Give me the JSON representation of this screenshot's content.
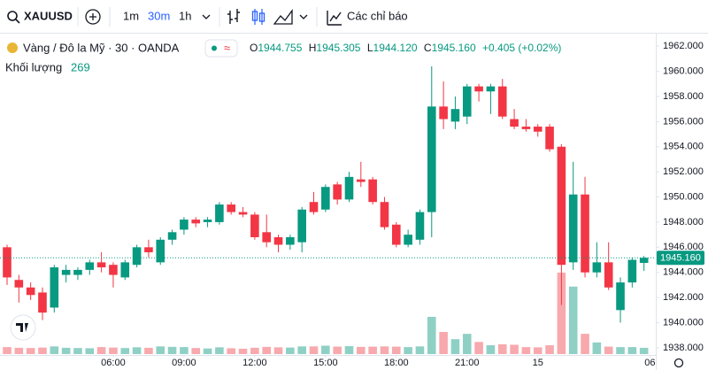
{
  "toolbar": {
    "symbol": "XAUUSD",
    "intervals": [
      "1m",
      "30m",
      "1h"
    ],
    "active_interval": 1,
    "indicators": "Các chỉ báo"
  },
  "legend": {
    "title": "Vàng / Đô la Mỹ · 30 · OANDA",
    "ohlc": [
      {
        "key": "O",
        "value": "1944.755"
      },
      {
        "key": "H",
        "value": "1945.305"
      },
      {
        "key": "L",
        "value": "1944.120"
      },
      {
        "key": "C",
        "value": "1945.160"
      }
    ],
    "change": "+0.405 (+0.02%)",
    "volume_label": "Khối lượng"
  },
  "chart_data": {
    "type": "candlestick",
    "categories": [
      null,
      null,
      null,
      null,
      null,
      null,
      null,
      null,
      null,
      null,
      null,
      null,
      null,
      null,
      null,
      null,
      null,
      null,
      null,
      null,
      null,
      null,
      null,
      null,
      null,
      null,
      null,
      null,
      null,
      null,
      null,
      null,
      null,
      null,
      null,
      null,
      null,
      null,
      null,
      null,
      null,
      null,
      null,
      null,
      null,
      null,
      null,
      null,
      null,
      null,
      null,
      null,
      null,
      null,
      null
    ],
    "open": [
      1946.0,
      1943.4,
      1942.8,
      1942.4,
      1941.2,
      1943.8,
      1943.8,
      1944.2,
      1944.8,
      1944.6,
      1943.6,
      1944.6,
      1946.0,
      1944.8,
      1946.6,
      1947.4,
      1948.2,
      1948.0,
      1948.0,
      1949.4,
      1948.8,
      1948.6,
      1947.2,
      1946.8,
      1946.2,
      1946.4,
      1949.6,
      1949.0,
      1951.0,
      1949.8,
      1951.4,
      1951.4,
      1949.6,
      1947.8,
      1946.2,
      1946.6,
      1948.8,
      1957.2,
      1956.0,
      1956.4,
      1958.8,
      1958.4,
      1958.8,
      1956.2,
      1955.6,
      1955.6,
      1955.6,
      1954.0,
      1944.8,
      1950.2,
      1944.0,
      1944.8,
      1941.0,
      1943.2,
      1944.755
    ],
    "high": [
      1946.2,
      1943.8,
      1943.2,
      1942.8,
      1944.6,
      1944.6,
      1944.4,
      1945.0,
      1945.6,
      1944.8,
      1945.0,
      1946.2,
      1946.6,
      1946.8,
      1947.4,
      1948.4,
      1948.4,
      1948.4,
      1949.6,
      1949.6,
      1949.2,
      1948.8,
      1948.6,
      1947.0,
      1947.0,
      1949.2,
      1950.4,
      1951.0,
      1951.2,
      1952.0,
      1952.8,
      1951.6,
      1950.0,
      1948.0,
      1947.4,
      1949.0,
      1960.4,
      1959.2,
      1958.0,
      1959.0,
      1959.0,
      1959.0,
      1959.4,
      1957.0,
      1956.2,
      1955.8,
      1955.8,
      1954.2,
      1952.8,
      1951.6,
      1946.4,
      1946.4,
      1943.6,
      1945.2,
      1945.305
    ],
    "low": [
      1943.0,
      1941.6,
      1941.8,
      1940.2,
      1940.8,
      1943.2,
      1943.4,
      1943.8,
      1944.0,
      1942.8,
      1943.4,
      1944.4,
      1945.2,
      1944.6,
      1946.2,
      1947.0,
      1947.6,
      1947.6,
      1947.8,
      1948.6,
      1948.4,
      1946.6,
      1946.0,
      1945.6,
      1945.8,
      1945.6,
      1948.6,
      1948.8,
      1949.4,
      1949.6,
      1950.8,
      1949.4,
      1947.4,
      1946.0,
      1946.0,
      1946.2,
      1946.8,
      1955.4,
      1955.4,
      1955.8,
      1957.6,
      1956.6,
      1956.2,
      1955.4,
      1955.2,
      1954.8,
      1953.6,
      1941.4,
      1944.2,
      1943.6,
      1943.6,
      1942.6,
      1940.0,
      1942.8,
      1944.12
    ],
    "close": [
      1943.6,
      1942.8,
      1942.2,
      1940.8,
      1944.4,
      1944.2,
      1944.2,
      1944.8,
      1944.4,
      1943.8,
      1944.8,
      1946.0,
      1945.6,
      1946.6,
      1947.2,
      1948.2,
      1947.9,
      1948.2,
      1949.4,
      1948.8,
      1948.6,
      1946.8,
      1946.4,
      1946.2,
      1946.8,
      1949.0,
      1948.8,
      1950.8,
      1949.8,
      1951.6,
      1951.2,
      1949.6,
      1947.6,
      1946.2,
      1947.0,
      1948.8,
      1957.2,
      1956.2,
      1957.0,
      1958.8,
      1958.4,
      1958.8,
      1956.4,
      1955.6,
      1955.4,
      1955.2,
      1953.8,
      1944.6,
      1950.2,
      1944.0,
      1944.8,
      1942.8,
      1943.2,
      1945.0,
      1945.16
    ],
    "volume": [
      300,
      270,
      260,
      280,
      330,
      270,
      260,
      250,
      300,
      280,
      260,
      290,
      270,
      330,
      310,
      300,
      260,
      240,
      290,
      250,
      230,
      270,
      310,
      290,
      280,
      330,
      330,
      360,
      320,
      340,
      310,
      320,
      330,
      320,
      300,
      330,
      1600,
      950,
      640,
      870,
      520,
      380,
      420,
      400,
      300,
      290,
      380,
      3500,
      2900,
      870,
      500,
      320,
      300,
      300,
      269
    ],
    "up_color": "#089981",
    "down_color": "#f23645",
    "up_volume_color": "#8fd0c5",
    "down_volume_color": "#f8a9ad",
    "xlim": [
      -0.6,
      55.0
    ],
    "xticks": [
      {
        "value": 9,
        "label": "06:00"
      },
      {
        "value": 15,
        "label": "09:00"
      },
      {
        "value": 21,
        "label": "12:00"
      },
      {
        "value": 27,
        "label": "15:00"
      },
      {
        "value": 33,
        "label": "18:00"
      },
      {
        "value": 39,
        "label": "21:00"
      },
      {
        "value": 45,
        "label": "15"
      },
      {
        "value": 54.5,
        "label": "06"
      }
    ],
    "ylim": [
      1937.5,
      1963.0
    ],
    "yticks": [
      {
        "value": 1938,
        "label": "1938.000"
      },
      {
        "value": 1940,
        "label": "1940.000"
      },
      {
        "value": 1942,
        "label": "1942.000"
      },
      {
        "value": 1944,
        "label": "1944.000"
      },
      {
        "value": 1946,
        "label": "1946.000"
      },
      {
        "value": 1948,
        "label": "1948.000"
      },
      {
        "value": 1950,
        "label": "1950.000"
      },
      {
        "value": 1952,
        "label": "1952.000"
      },
      {
        "value": 1954,
        "label": "1954.000"
      },
      {
        "value": 1956,
        "label": "1956.000"
      },
      {
        "value": 1958,
        "label": "1958.000"
      },
      {
        "value": 1960,
        "label": "1960.000"
      },
      {
        "value": 1962,
        "label": "1962.000"
      }
    ],
    "last_price": {
      "value": 1945.16,
      "label": "1945.160"
    },
    "grid": false
  }
}
